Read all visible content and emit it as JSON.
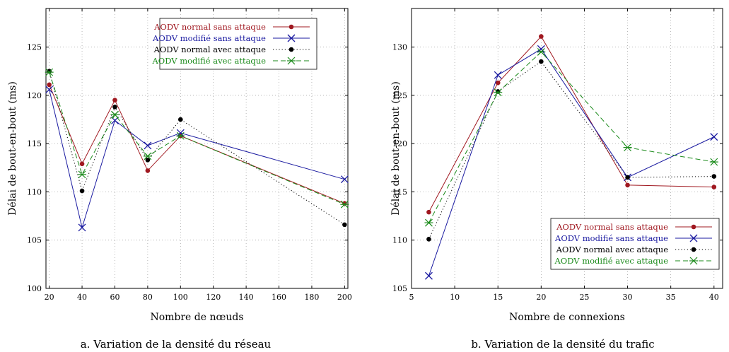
{
  "chart_data": [
    {
      "type": "line",
      "caption": "a. Variation de la densité du réseau",
      "xlabel": "Nombre de nœuds",
      "ylabel": "Délai de bout-en-bout (ms)",
      "xlim": [
        18,
        202
      ],
      "ylim": [
        100,
        129
      ],
      "xticks": [
        20,
        40,
        60,
        80,
        100,
        120,
        140,
        160,
        180,
        200
      ],
      "yticks": [
        100,
        105,
        110,
        115,
        120,
        125
      ],
      "grid": true,
      "legend_position": "top-right",
      "x": [
        20,
        40,
        60,
        80,
        100,
        200
      ],
      "series": [
        {
          "name": "AODV normal sans attaque",
          "color": "#a01820",
          "style": "solid",
          "marker": "dot",
          "values": [
            121.1,
            112.9,
            119.5,
            112.2,
            115.8,
            108.8
          ]
        },
        {
          "name": "AODV modifié sans attaque",
          "color": "#1a1aa0",
          "style": "solid",
          "marker": "x",
          "values": [
            120.6,
            106.3,
            117.4,
            114.8,
            116.1,
            111.3
          ]
        },
        {
          "name": "AODV normal avec attaque",
          "color": "#000000",
          "style": "dotted",
          "marker": "dot",
          "values": [
            122.5,
            110.1,
            118.8,
            113.3,
            117.5,
            106.6
          ]
        },
        {
          "name": "AODV modifié avec attaque",
          "color": "#1a8a1a",
          "style": "dashed",
          "marker": "star",
          "values": [
            122.4,
            111.8,
            118.0,
            113.7,
            115.8,
            108.7
          ]
        }
      ]
    },
    {
      "type": "line",
      "caption": "b. Variation de la densité du trafic",
      "xlabel": "Nombre de connexions",
      "ylabel": "Délai de bout-en-bout (ms)",
      "xlim": [
        5,
        41
      ],
      "ylim": [
        105,
        134
      ],
      "xticks": [
        5,
        10,
        15,
        20,
        25,
        30,
        35,
        40
      ],
      "yticks": [
        105,
        110,
        115,
        120,
        125,
        130
      ],
      "grid": true,
      "legend_position": "bottom-right",
      "x": [
        7,
        15,
        20,
        30,
        40
      ],
      "series": [
        {
          "name": "AODV normal sans attaque",
          "color": "#a01820",
          "style": "solid",
          "marker": "dot",
          "values": [
            112.9,
            126.3,
            131.1,
            115.7,
            115.5
          ]
        },
        {
          "name": "AODV modifié sans attaque",
          "color": "#1a1aa0",
          "style": "solid",
          "marker": "x",
          "values": [
            106.3,
            127.1,
            129.8,
            116.5,
            120.7
          ]
        },
        {
          "name": "AODV normal avec attaque",
          "color": "#000000",
          "style": "dotted",
          "marker": "dot",
          "values": [
            110.1,
            125.4,
            128.5,
            116.5,
            116.6
          ]
        },
        {
          "name": "AODV modifié avec attaque",
          "color": "#1a8a1a",
          "style": "dashed",
          "marker": "star",
          "values": [
            111.8,
            125.3,
            129.5,
            119.6,
            118.1
          ]
        }
      ]
    }
  ]
}
